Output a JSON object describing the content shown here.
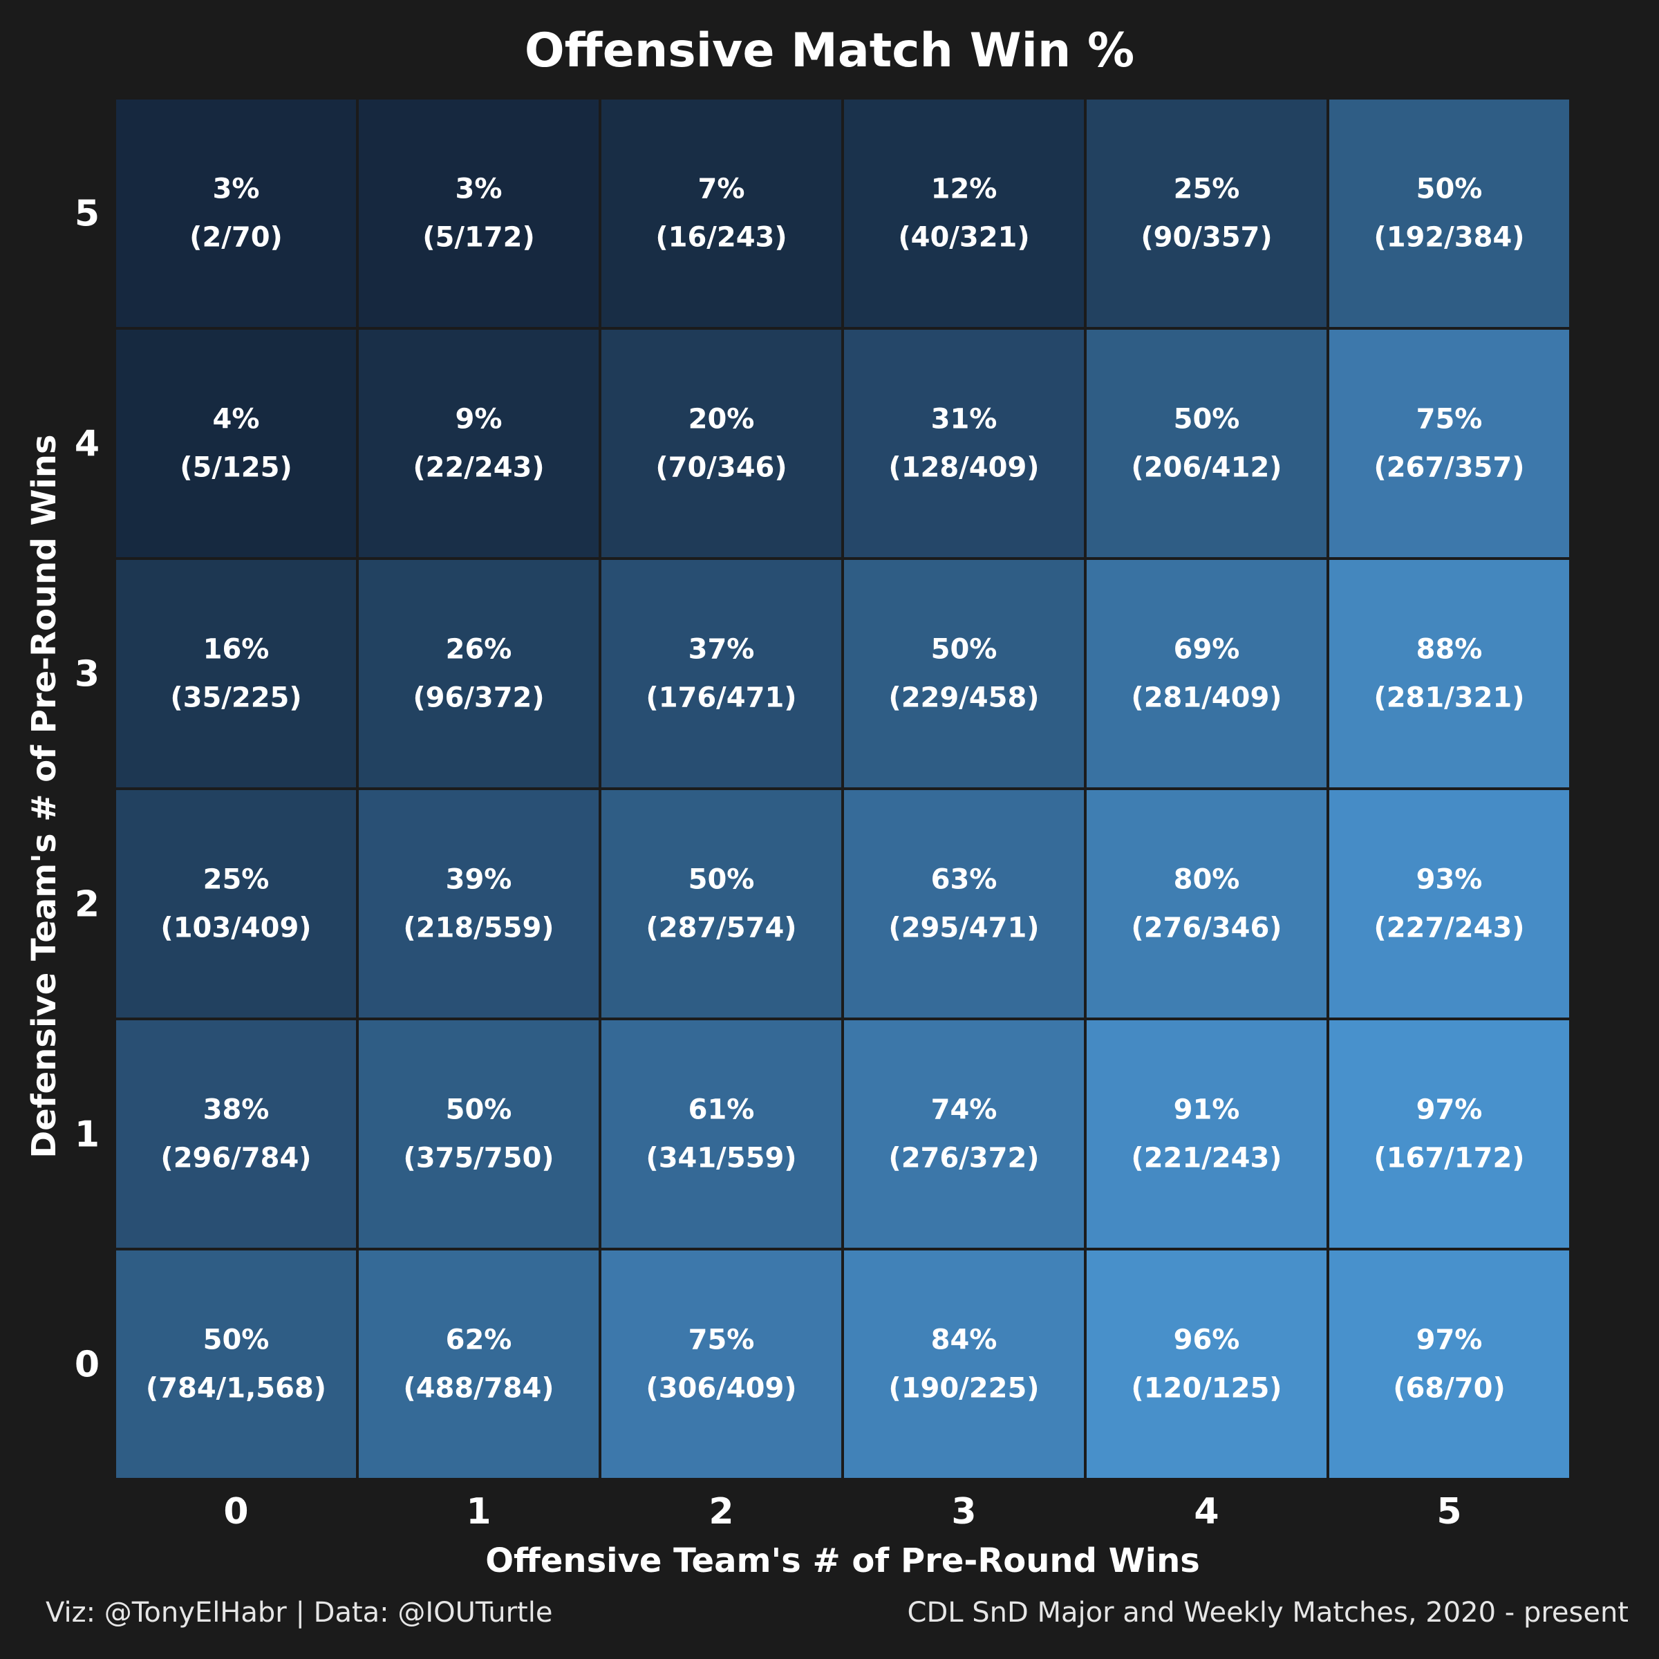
{
  "chart_data": {
    "type": "heatmap",
    "title": "Offensive Match Win %",
    "xlabel": "Offensive Team's # of Pre-Round Wins",
    "ylabel": "Defensive Team's # of Pre-Round Wins",
    "x_categories": [
      "0",
      "1",
      "2",
      "3",
      "4",
      "5"
    ],
    "y_categories": [
      "0",
      "1",
      "2",
      "3",
      "4",
      "5"
    ],
    "color_low": "#14253a",
    "color_high": "#4a94d0",
    "grid_line_color": "#1b1b1b",
    "cells": [
      {
        "x": 0,
        "y": 5,
        "pct": "3%",
        "frac": "(2/70)",
        "value": 0.03
      },
      {
        "x": 1,
        "y": 5,
        "pct": "3%",
        "frac": "(5/172)",
        "value": 0.03
      },
      {
        "x": 2,
        "y": 5,
        "pct": "7%",
        "frac": "(16/243)",
        "value": 0.07
      },
      {
        "x": 3,
        "y": 5,
        "pct": "12%",
        "frac": "(40/321)",
        "value": 0.12
      },
      {
        "x": 4,
        "y": 5,
        "pct": "25%",
        "frac": "(90/357)",
        "value": 0.25
      },
      {
        "x": 5,
        "y": 5,
        "pct": "50%",
        "frac": "(192/384)",
        "value": 0.5
      },
      {
        "x": 0,
        "y": 4,
        "pct": "4%",
        "frac": "(5/125)",
        "value": 0.04
      },
      {
        "x": 1,
        "y": 4,
        "pct": "9%",
        "frac": "(22/243)",
        "value": 0.09
      },
      {
        "x": 2,
        "y": 4,
        "pct": "20%",
        "frac": "(70/346)",
        "value": 0.2
      },
      {
        "x": 3,
        "y": 4,
        "pct": "31%",
        "frac": "(128/409)",
        "value": 0.31
      },
      {
        "x": 4,
        "y": 4,
        "pct": "50%",
        "frac": "(206/412)",
        "value": 0.5
      },
      {
        "x": 5,
        "y": 4,
        "pct": "75%",
        "frac": "(267/357)",
        "value": 0.75
      },
      {
        "x": 0,
        "y": 3,
        "pct": "16%",
        "frac": "(35/225)",
        "value": 0.16
      },
      {
        "x": 1,
        "y": 3,
        "pct": "26%",
        "frac": "(96/372)",
        "value": 0.26
      },
      {
        "x": 2,
        "y": 3,
        "pct": "37%",
        "frac": "(176/471)",
        "value": 0.37
      },
      {
        "x": 3,
        "y": 3,
        "pct": "50%",
        "frac": "(229/458)",
        "value": 0.5
      },
      {
        "x": 4,
        "y": 3,
        "pct": "69%",
        "frac": "(281/409)",
        "value": 0.69
      },
      {
        "x": 5,
        "y": 3,
        "pct": "88%",
        "frac": "(281/321)",
        "value": 0.88
      },
      {
        "x": 0,
        "y": 2,
        "pct": "25%",
        "frac": "(103/409)",
        "value": 0.25
      },
      {
        "x": 1,
        "y": 2,
        "pct": "39%",
        "frac": "(218/559)",
        "value": 0.39
      },
      {
        "x": 2,
        "y": 2,
        "pct": "50%",
        "frac": "(287/574)",
        "value": 0.5
      },
      {
        "x": 3,
        "y": 2,
        "pct": "63%",
        "frac": "(295/471)",
        "value": 0.63
      },
      {
        "x": 4,
        "y": 2,
        "pct": "80%",
        "frac": "(276/346)",
        "value": 0.8
      },
      {
        "x": 5,
        "y": 2,
        "pct": "93%",
        "frac": "(227/243)",
        "value": 0.93
      },
      {
        "x": 0,
        "y": 1,
        "pct": "38%",
        "frac": "(296/784)",
        "value": 0.38
      },
      {
        "x": 1,
        "y": 1,
        "pct": "50%",
        "frac": "(375/750)",
        "value": 0.5
      },
      {
        "x": 2,
        "y": 1,
        "pct": "61%",
        "frac": "(341/559)",
        "value": 0.61
      },
      {
        "x": 3,
        "y": 1,
        "pct": "74%",
        "frac": "(276/372)",
        "value": 0.74
      },
      {
        "x": 4,
        "y": 1,
        "pct": "91%",
        "frac": "(221/243)",
        "value": 0.91
      },
      {
        "x": 5,
        "y": 1,
        "pct": "97%",
        "frac": "(167/172)",
        "value": 0.97
      },
      {
        "x": 0,
        "y": 0,
        "pct": "50%",
        "frac": "(784/1,568)",
        "value": 0.5
      },
      {
        "x": 1,
        "y": 0,
        "pct": "62%",
        "frac": "(488/784)",
        "value": 0.62
      },
      {
        "x": 2,
        "y": 0,
        "pct": "75%",
        "frac": "(306/409)",
        "value": 0.75
      },
      {
        "x": 3,
        "y": 0,
        "pct": "84%",
        "frac": "(190/225)",
        "value": 0.84
      },
      {
        "x": 4,
        "y": 0,
        "pct": "96%",
        "frac": "(120/125)",
        "value": 0.96
      },
      {
        "x": 5,
        "y": 0,
        "pct": "97%",
        "frac": "(68/70)",
        "value": 0.97
      }
    ]
  },
  "captions": {
    "left": "Viz: @TonyElHabr | Data: @IOUTurtle",
    "right": "CDL SnD Major and Weekly Matches, 2020 - present"
  },
  "colors": {
    "background": "#1b1b1b",
    "text": "#ffffff"
  }
}
